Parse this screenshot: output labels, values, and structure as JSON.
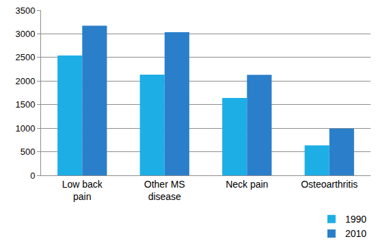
{
  "chart_data": {
    "type": "bar",
    "categories": [
      "Low back pain",
      "Other MS disease",
      "Neck pain",
      "Osteoarthritis"
    ],
    "series": [
      {
        "name": "1990",
        "color": "#1daee6",
        "values": [
          2540,
          2135,
          1640,
          635
        ]
      },
      {
        "name": "2010",
        "color": "#2b7fca",
        "values": [
          3175,
          3035,
          2130,
          990
        ]
      }
    ],
    "ylim": [
      0,
      3500
    ],
    "yticks": [
      0,
      500,
      1000,
      1500,
      2000,
      2500,
      3000,
      3500
    ],
    "grid": true,
    "legend": "bottom right"
  }
}
